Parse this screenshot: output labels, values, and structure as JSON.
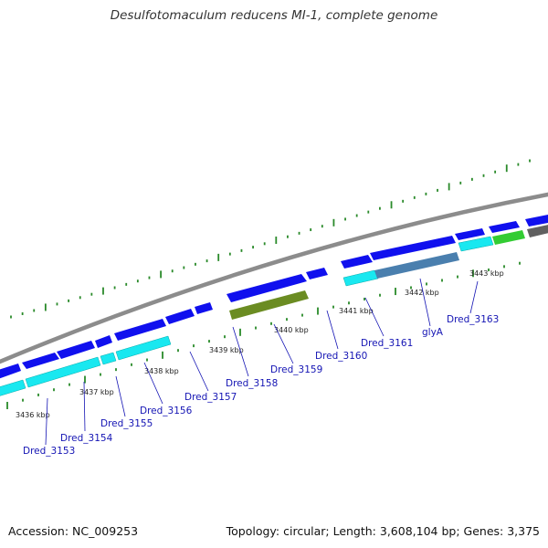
{
  "title": "Desulfotomaculum reducens MI-1, complete genome",
  "footer": {
    "accession": "Accession: NC_009253",
    "summary": "Topology: circular; Length: 3,608,104 bp; Genes: 3,375"
  },
  "colors": {
    "backbone": "#8c8c8c",
    "forward_cds": "#1010ee",
    "reverse_cds": "#19e8f0",
    "tick": "#2a8a2a",
    "gene_label": "#1414b4",
    "olive_feature": "#6b8c22",
    "steel_feature": "#4a7fae",
    "green_feature": "#33cc33",
    "gray_feature": "#606060"
  },
  "ticks": [
    {
      "label": "3436 kbp"
    },
    {
      "label": "3437 kbp"
    },
    {
      "label": "3438 kbp"
    },
    {
      "label": "3439 kbp"
    },
    {
      "label": "3440 kbp"
    },
    {
      "label": "3441 kbp"
    },
    {
      "label": "3442 kbp"
    },
    {
      "label": "3443 kbp"
    }
  ],
  "genes": [
    {
      "name": "Dred_3153"
    },
    {
      "name": "Dred_3154"
    },
    {
      "name": "Dred_3155"
    },
    {
      "name": "Dred_3156"
    },
    {
      "name": "Dred_3157"
    },
    {
      "name": "Dred_3158"
    },
    {
      "name": "Dred_3159"
    },
    {
      "name": "Dred_3160"
    },
    {
      "name": "Dred_3161"
    },
    {
      "name": "glyA"
    },
    {
      "name": "Dred_3163"
    }
  ]
}
